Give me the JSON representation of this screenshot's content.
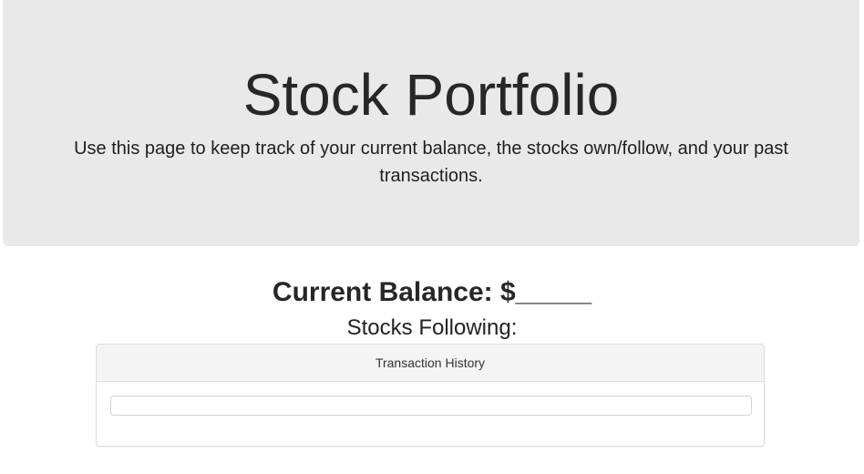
{
  "header": {
    "title": "Stock Portfolio",
    "description": "Use this page to keep track of your current balance, the stocks own/follow, and your past transactions."
  },
  "balance": {
    "label": "Current Balance: $_____"
  },
  "stocks": {
    "heading": "Stocks Following:"
  },
  "transactions": {
    "heading": "Transaction History",
    "input_value": ""
  }
}
